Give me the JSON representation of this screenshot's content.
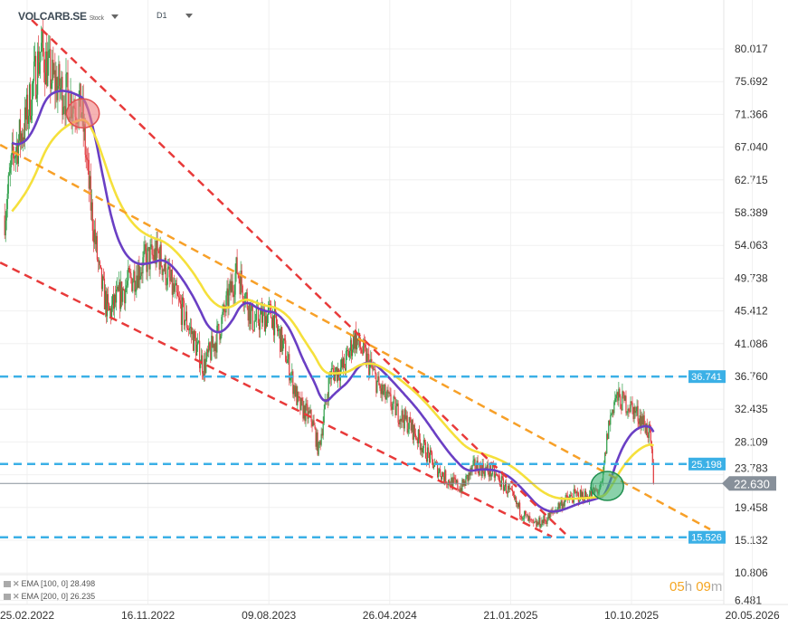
{
  "header": {
    "symbol": "VOLCARB.SE",
    "instrument_type": "Stock",
    "timeframe": "D1"
  },
  "legend": [
    {
      "label": "EMA [100, 0] 28.498",
      "color": "#6a3fc4"
    },
    {
      "label": "EMA [200, 0] 26.235",
      "color": "#f5e03c"
    }
  ],
  "timer": {
    "hours": "05",
    "h": "h",
    "minutes": "09",
    "m": "m"
  },
  "chart_data": {
    "type": "candlestick",
    "y_ticks": [
      "80.017",
      "75.692",
      "71.366",
      "67.040",
      "62.715",
      "58.389",
      "54.063",
      "49.738",
      "45.412",
      "41.086",
      "36.760",
      "32.435",
      "28.109",
      "23.783",
      "19.458",
      "15.132",
      "10.806",
      "6.481"
    ],
    "ylim": [
      6.481,
      80.017
    ],
    "x_ticks": [
      "25.02.2022",
      "16.11.2022",
      "09.08.2023",
      "26.04.2024",
      "21.01.2025",
      "10.10.2025",
      "20.05.2026"
    ],
    "grid": true,
    "colors": {
      "up": "#2e9e48",
      "down": "#e0393e",
      "ema100": "#6a3fc4",
      "ema200": "#f5e03c",
      "channel": "#e83a3a",
      "trend": "#f7a028",
      "level": "#3bb0e6",
      "last": "#87909a"
    },
    "close_path": [
      [
        "2022-01-07",
        58
      ],
      [
        "2022-01-25",
        66
      ],
      [
        "2022-02-20",
        70
      ],
      [
        "2022-03-27",
        80
      ],
      [
        "2022-04-20",
        76
      ],
      [
        "2022-05-20",
        74
      ],
      [
        "2022-06-24",
        72
      ],
      [
        "2022-07-13",
        60
      ],
      [
        "2022-08-02",
        50
      ],
      [
        "2022-08-22",
        45
      ],
      [
        "2022-09-21",
        48
      ],
      [
        "2022-11-09",
        52
      ],
      [
        "2022-12-09",
        53
      ],
      [
        "2023-01-17",
        47
      ],
      [
        "2023-02-16",
        43
      ],
      [
        "2023-03-18",
        38
      ],
      [
        "2023-04-16",
        42
      ],
      [
        "2023-05-06",
        46
      ],
      [
        "2023-05-30",
        51
      ],
      [
        "2023-07-04",
        44
      ],
      [
        "2023-08-13",
        45
      ],
      [
        "2023-09-12",
        40
      ],
      [
        "2023-10-11",
        33
      ],
      [
        "2023-11-10",
        31
      ],
      [
        "2023-11-24",
        27
      ],
      [
        "2023-12-19",
        37
      ],
      [
        "2024-01-18",
        38
      ],
      [
        "2024-02-11",
        42
      ],
      [
        "2024-03-17",
        38
      ],
      [
        "2024-04-06",
        35
      ],
      [
        "2024-05-16",
        32
      ],
      [
        "2024-06-14",
        30
      ],
      [
        "2024-07-04",
        28
      ],
      [
        "2024-08-03",
        25
      ],
      [
        "2024-09-02",
        23
      ],
      [
        "2024-10-01",
        22
      ],
      [
        "2024-10-31",
        25
      ],
      [
        "2024-12-09",
        24
      ],
      [
        "2025-01-08",
        22
      ],
      [
        "2025-02-07",
        19
      ],
      [
        "2025-03-08",
        17
      ],
      [
        "2025-04-07",
        18
      ],
      [
        "2025-05-07",
        20
      ],
      [
        "2025-06-05",
        21
      ],
      [
        "2025-07-05",
        21
      ],
      [
        "2025-08-04",
        22
      ],
      [
        "2025-08-18",
        30
      ],
      [
        "2025-09-02",
        34
      ],
      [
        "2025-10-02",
        33
      ],
      [
        "2025-11-01",
        31
      ],
      [
        "2025-11-17",
        29
      ],
      [
        "2025-11-26",
        22.63
      ]
    ],
    "indicators": [
      {
        "name": "EMA [100, 0]",
        "period": 100,
        "last": 28.498
      },
      {
        "name": "EMA [200, 0]",
        "period": 200,
        "last": 26.235
      }
    ],
    "trendlines": [
      {
        "kind": "channel-upper",
        "from": [
          "2022-03-07",
          83.84
        ],
        "to": [
          "2025-05-23",
          15.6
        ]
      },
      {
        "kind": "channel-lower",
        "from": [
          "2021-12-28",
          51.8
        ],
        "to": [
          "2025-04-17",
          15.6
        ]
      },
      {
        "kind": "trend",
        "from": [
          "2021-12-28",
          67.35
        ],
        "to": [
          "2026-03-29",
          16.57
        ]
      }
    ],
    "levels": [
      "36.741",
      "25.198",
      "15.526"
    ],
    "last_price": "22.630",
    "markers": [
      {
        "kind": "bearish-cross",
        "date": "2022-06-27",
        "price": 71.5,
        "color": "#f08080"
      },
      {
        "kind": "bullish-cross",
        "date": "2025-08-16",
        "price": 22.3,
        "color": "#3cb371"
      }
    ]
  }
}
